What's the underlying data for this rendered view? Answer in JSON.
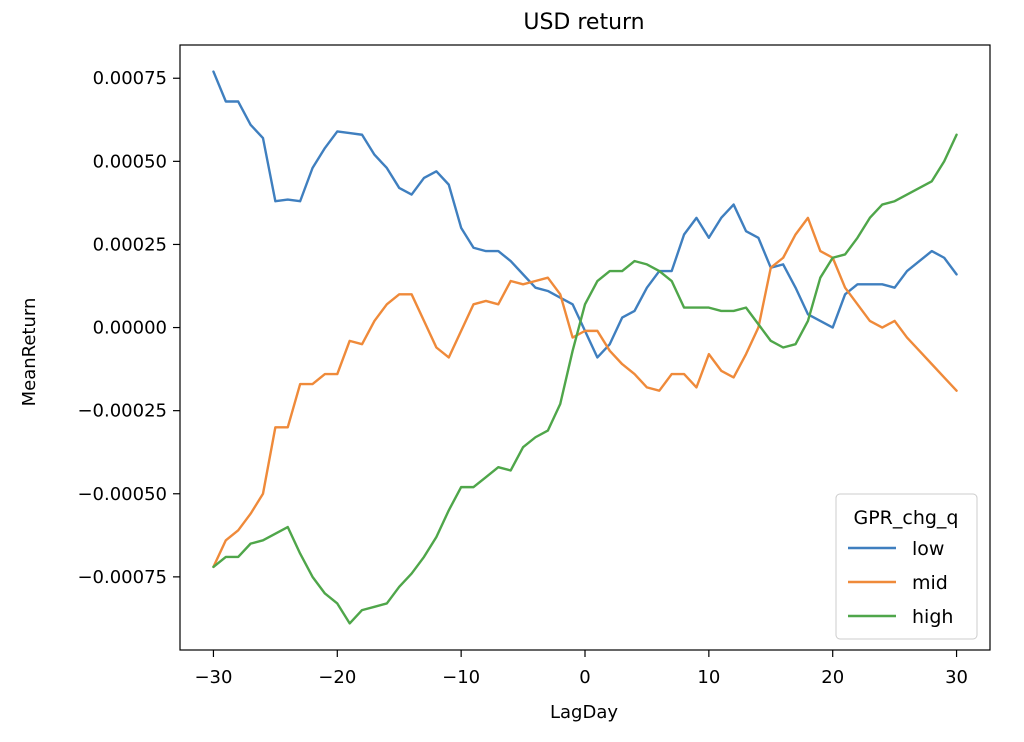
{
  "chart_data": {
    "type": "line",
    "title": "USD return",
    "xlabel": "LagDay",
    "ylabel": "MeanReturn",
    "xlim": [
      -32.7,
      32.7
    ],
    "ylim": [
      -0.00097,
      0.00085
    ],
    "x_ticks": [
      -30,
      -20,
      -10,
      0,
      10,
      20,
      30
    ],
    "x_tick_labels": [
      "−30",
      "−20",
      "−10",
      "0",
      "10",
      "20",
      "30"
    ],
    "y_ticks": [
      -0.00075,
      -0.0005,
      -0.00025,
      0.0,
      0.00025,
      0.0005,
      0.00075
    ],
    "y_tick_labels": [
      "−0.00075",
      "−0.00050",
      "−0.00025",
      "0.00000",
      "0.00025",
      "0.00050",
      "0.00075"
    ],
    "grid": false,
    "legend": {
      "title": "GPR_chg_q",
      "placement": "lower-right"
    },
    "x": [
      -30,
      -29,
      -28,
      -27,
      -26,
      -25,
      -24,
      -23,
      -22,
      -21,
      -20,
      -19,
      -18,
      -17,
      -16,
      -15,
      -14,
      -13,
      -12,
      -11,
      -10,
      -9,
      -8,
      -7,
      -6,
      -5,
      -4,
      -3,
      -2,
      -1,
      0,
      1,
      2,
      3,
      4,
      5,
      6,
      7,
      8,
      9,
      10,
      11,
      12,
      13,
      14,
      15,
      16,
      17,
      18,
      19,
      20,
      21,
      22,
      23,
      24,
      25,
      26,
      27,
      28,
      29,
      30
    ],
    "series": [
      {
        "name": "low",
        "color": "#3f7fbf",
        "values": [
          0.00077,
          0.00068,
          0.00068,
          0.00061,
          0.00057,
          0.00038,
          0.000385,
          0.00038,
          0.00048,
          0.00054,
          0.00059,
          0.000585,
          0.00058,
          0.00052,
          0.00048,
          0.00042,
          0.0004,
          0.00045,
          0.00047,
          0.00043,
          0.0003,
          0.00024,
          0.00023,
          0.00023,
          0.0002,
          0.00016,
          0.00012,
          0.00011,
          9e-05,
          7e-05,
          -1e-05,
          -9e-05,
          -5e-05,
          3e-05,
          5e-05,
          0.00012,
          0.00017,
          0.00017,
          0.00028,
          0.00033,
          0.00027,
          0.00033,
          0.00037,
          0.00029,
          0.00027,
          0.00018,
          0.00019,
          0.00012,
          4e-05,
          2e-05,
          0.0,
          0.0001,
          0.00013,
          0.00013,
          0.00013,
          0.00012,
          0.00017,
          0.0002,
          0.00023,
          0.00021,
          0.00016
        ]
      },
      {
        "name": "mid",
        "color": "#ef8a3a",
        "values": [
          -0.00072,
          -0.00064,
          -0.00061,
          -0.00056,
          -0.0005,
          -0.0003,
          -0.0003,
          -0.00017,
          -0.00017,
          -0.00014,
          -0.00014,
          -4e-05,
          -5e-05,
          2e-05,
          7e-05,
          0.0001,
          0.0001,
          2e-05,
          -6e-05,
          -9e-05,
          -1e-05,
          7e-05,
          8e-05,
          7e-05,
          0.00014,
          0.00013,
          0.00014,
          0.00015,
          0.0001,
          -3e-05,
          -1e-05,
          -1e-05,
          -7e-05,
          -0.00011,
          -0.00014,
          -0.00018,
          -0.00019,
          -0.00014,
          -0.00014,
          -0.00018,
          -8e-05,
          -0.00013,
          -0.00015,
          -8e-05,
          0.0,
          0.00018,
          0.00021,
          0.00028,
          0.00033,
          0.00023,
          0.00021,
          0.00012,
          7e-05,
          2e-05,
          0.0,
          2e-05,
          -3e-05,
          -7e-05,
          -0.00011,
          -0.00015,
          -0.00019
        ]
      },
      {
        "name": "high",
        "color": "#4fa64a",
        "values": [
          -0.00072,
          -0.00069,
          -0.00069,
          -0.00065,
          -0.00064,
          -0.00062,
          -0.0006,
          -0.00068,
          -0.00075,
          -0.0008,
          -0.00083,
          -0.00089,
          -0.00085,
          -0.00084,
          -0.00083,
          -0.00078,
          -0.00074,
          -0.00069,
          -0.00063,
          -0.00055,
          -0.00048,
          -0.00048,
          -0.00045,
          -0.00042,
          -0.00043,
          -0.00036,
          -0.00033,
          -0.00031,
          -0.00023,
          -7e-05,
          7e-05,
          0.00014,
          0.00017,
          0.00017,
          0.0002,
          0.00019,
          0.00017,
          0.00014,
          6e-05,
          6e-05,
          6e-05,
          5e-05,
          5e-05,
          6e-05,
          1e-05,
          -4e-05,
          -6e-05,
          -5e-05,
          2e-05,
          0.00015,
          0.00021,
          0.00022,
          0.00027,
          0.00033,
          0.00037,
          0.00038,
          0.0004,
          0.00042,
          0.00044,
          0.0005,
          0.00058
        ]
      }
    ]
  }
}
